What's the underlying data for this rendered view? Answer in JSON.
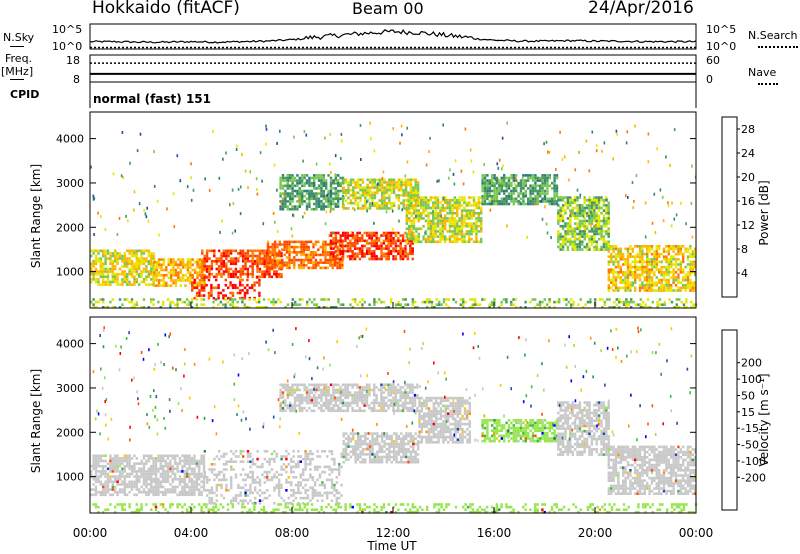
{
  "header": {
    "station": "Hokkaido (fitACF)",
    "beam": "Beam 00",
    "date": "24/Apr/2016"
  },
  "left_labels": {
    "nsky": "N.Sky",
    "freq": "Freq.",
    "freq_unit": "[MHz]",
    "cpid": "CPID"
  },
  "right_labels": {
    "nsearch": "N.Search",
    "nave": "Nave"
  },
  "cpid_text": "normal (fast) 151",
  "colors": {
    "power_scale": [
      "#0000ff",
      "#1e50a0",
      "#2d7d78",
      "#469664",
      "#78c850",
      "#e6e600",
      "#ffb400",
      "#ff7800",
      "#ff4600",
      "#ff0000"
    ],
    "velocity_scale": [
      "#ff0000",
      "#ff5000",
      "#ff9600",
      "#ffc800",
      "#c8c8c8",
      "#c8c8c8",
      "#96e64b",
      "#41b941",
      "#328c64",
      "#1e50a0",
      "#0000ff"
    ],
    "ground_scatter": "#c8c8c8"
  },
  "chart_data": [
    {
      "type": "line",
      "panel": "noise",
      "left_ticks": [
        "10^5",
        "10^0"
      ],
      "right_ticks": [
        "10^5",
        "10^0"
      ],
      "x": [
        0,
        1,
        2,
        3,
        4,
        5,
        6,
        7,
        8,
        9,
        10,
        11,
        12,
        13,
        14,
        15,
        16,
        17,
        18,
        19,
        20,
        21,
        22,
        23,
        24
      ],
      "series": [
        {
          "values": [
            1.4,
            1.4,
            1.3,
            1.3,
            1.4,
            1.3,
            1.4,
            1.5,
            1.8,
            2.2,
            2.6,
            3.0,
            3.3,
            3.1,
            2.6,
            2.1,
            1.7,
            1.5,
            1.5,
            1.6,
            1.5,
            1.5,
            1.4,
            1.4,
            1.4
          ]
        },
        {
          "values": [
            0.3,
            0.3,
            0.3,
            0.3,
            0.3,
            0.3,
            0.3,
            0.3,
            0.3,
            0.3,
            0.3,
            0.3,
            0.3,
            0.3,
            0.3,
            0.3,
            0.3,
            0.3,
            0.3,
            0.3,
            0.3,
            0.3,
            0.3,
            0.3,
            0.3
          ]
        }
      ]
    },
    {
      "type": "line",
      "panel": "frequency",
      "left_ticks": [
        "18",
        "8"
      ],
      "right_ticks": [
        "60",
        "0"
      ],
      "x": [
        0,
        24
      ],
      "series": [
        {
          "values": [
            11.0,
            11.0
          ]
        },
        {
          "values": [
            15.0,
            15.0
          ]
        }
      ]
    },
    {
      "type": "heatmap",
      "panel": "power",
      "ylabel": "Slant Range [km]",
      "yticks": [
        "1000",
        "2000",
        "3000",
        "4000"
      ],
      "ylim": [
        180,
        4600
      ],
      "xlim": [
        0,
        24
      ],
      "colorbar_label": "Power [dB]",
      "colorbar_ticks": [
        "4",
        "8",
        "12",
        "16",
        "20",
        "24",
        "28"
      ],
      "colorbar_range": [
        0,
        30
      ],
      "regions": [
        {
          "x": [
            0.0,
            2.5
          ],
          "y": [
            700,
            1500
          ],
          "v": 17
        },
        {
          "x": [
            2.5,
            4.5
          ],
          "y": [
            700,
            1300
          ],
          "v": 20
        },
        {
          "x": [
            4.0,
            6.8
          ],
          "y": [
            400,
            900
          ],
          "v": 27
        },
        {
          "x": [
            4.4,
            7.6
          ],
          "y": [
            900,
            1500
          ],
          "v": 25
        },
        {
          "x": [
            7.0,
            10.0
          ],
          "y": [
            1100,
            1700
          ],
          "v": 23
        },
        {
          "x": [
            9.5,
            12.8
          ],
          "y": [
            1300,
            1900
          ],
          "v": 26
        },
        {
          "x": [
            12.5,
            15.5
          ],
          "y": [
            1700,
            2700
          ],
          "v": 16
        },
        {
          "x": [
            7.5,
            10.0
          ],
          "y": [
            2400,
            3200
          ],
          "v": 11
        },
        {
          "x": [
            10.0,
            13.0
          ],
          "y": [
            2400,
            3100
          ],
          "v": 16
        },
        {
          "x": [
            15.5,
            18.5
          ],
          "y": [
            2500,
            3200
          ],
          "v": 11
        },
        {
          "x": [
            18.5,
            20.5
          ],
          "y": [
            1500,
            2700
          ],
          "v": 14
        },
        {
          "x": [
            20.5,
            24.0
          ],
          "y": [
            600,
            1600
          ],
          "v": 18
        },
        {
          "x": [
            0.0,
            24.0
          ],
          "y": [
            180,
            400
          ],
          "v": 14
        }
      ]
    },
    {
      "type": "heatmap",
      "panel": "velocity",
      "ylabel": "Slant Range [km]",
      "xlabel": "Time UT",
      "xticks": [
        "00:00",
        "04:00",
        "08:00",
        "12:00",
        "16:00",
        "20:00",
        "00:00"
      ],
      "yticks": [
        "1000",
        "2000",
        "3000",
        "4000"
      ],
      "ylim": [
        180,
        4600
      ],
      "xlim": [
        0,
        24
      ],
      "colorbar_label": "Velocity [m s⁻¹]",
      "colorbar_ticks": [
        "-200",
        "-100",
        "-50",
        "-15",
        "15",
        "50",
        "100",
        "200"
      ],
      "colorbar_range": [
        -250,
        250
      ],
      "regions": [
        {
          "x": [
            0.0,
            4.5
          ],
          "y": [
            600,
            1500
          ],
          "v": 0
        },
        {
          "x": [
            4.5,
            10.0
          ],
          "y": [
            400,
            1600
          ],
          "v": 0
        },
        {
          "x": [
            10.0,
            13.0
          ],
          "y": [
            1300,
            2000
          ],
          "v": 0
        },
        {
          "x": [
            13.0,
            15.0
          ],
          "y": [
            1800,
            2800
          ],
          "v": 0
        },
        {
          "x": [
            7.5,
            13.0
          ],
          "y": [
            2500,
            3100
          ],
          "v": 0
        },
        {
          "x": [
            15.5,
            18.5
          ],
          "y": [
            1800,
            2300
          ],
          "v": 60
        },
        {
          "x": [
            18.5,
            20.5
          ],
          "y": [
            1500,
            2700
          ],
          "v": 0
        },
        {
          "x": [
            20.5,
            24.0
          ],
          "y": [
            600,
            1700
          ],
          "v": 0
        },
        {
          "x": [
            0.0,
            24.0
          ],
          "y": [
            180,
            400
          ],
          "v": 40
        }
      ]
    }
  ]
}
